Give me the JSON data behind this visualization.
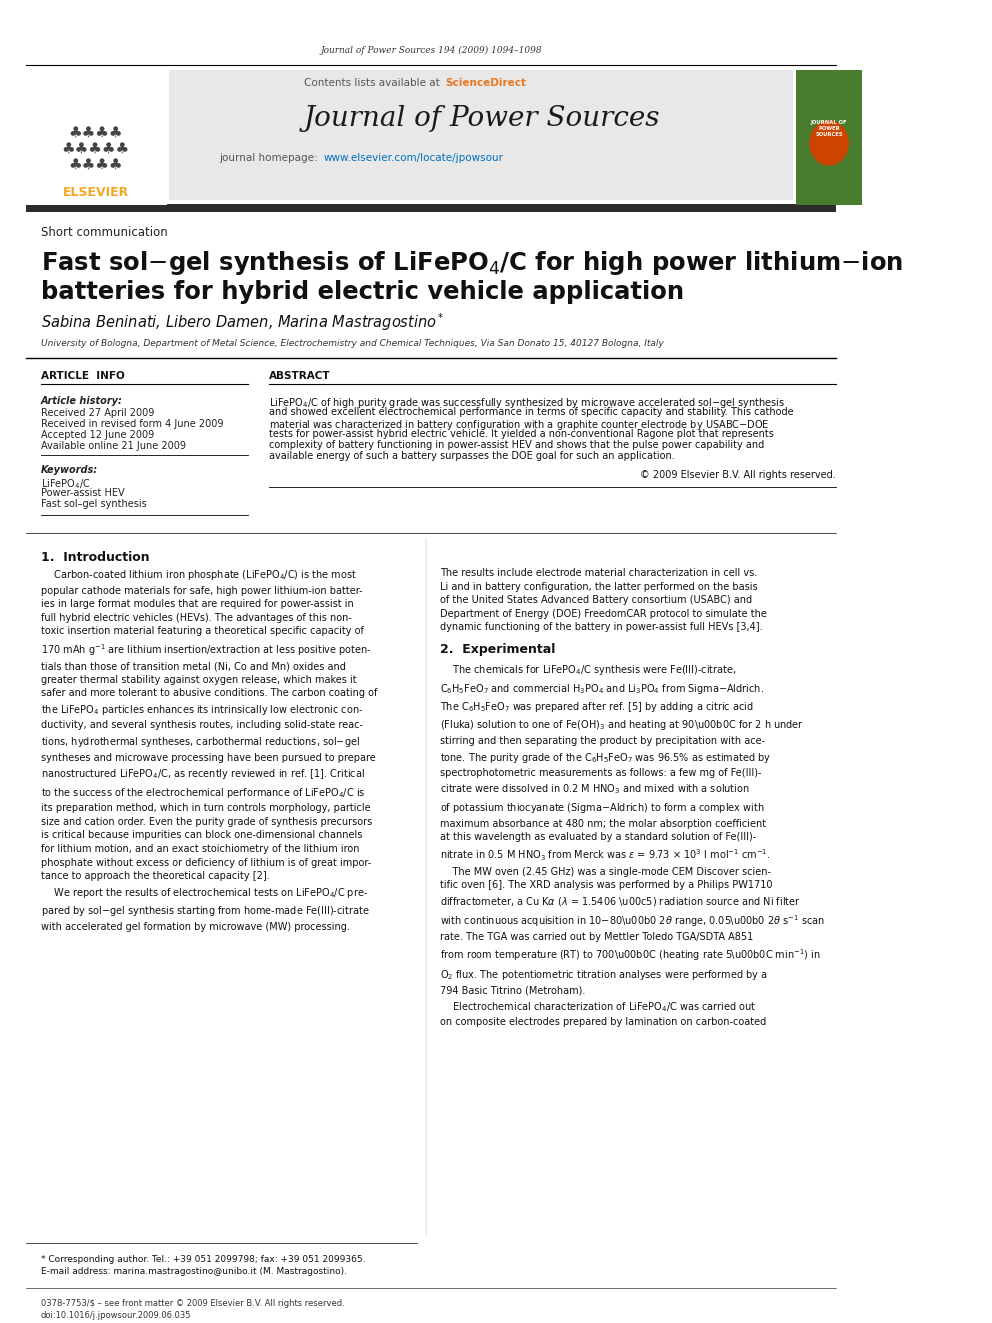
{
  "journal_ref": "Journal of Power Sources 194 (2009) 1094–1098",
  "journal_name": "Journal of Power Sources",
  "section_label": "Short communication",
  "title_line2": "batteries for hybrid electric vehicle application",
  "affiliation": "University of Bologna, Department of Metal Science, Electrochemistry and Chemical Techniques, Via San Donato 15, 40127 Bologna, Italy",
  "article_info_header": "ARTICLE  INFO",
  "abstract_header": "ABSTRACT",
  "article_history_label": "Article history:",
  "received1": "Received 27 April 2009",
  "received2": "Received in revised form 4 June 2009",
  "accepted": "Accepted 12 June 2009",
  "available": "Available online 21 June 2009",
  "kw2": "Power-assist HEV",
  "kw3": "Fast sol–gel synthesis",
  "section1_header": "1.  Introduction",
  "section2_header": "2.  Experimental",
  "footnote_star": "* Corresponding author. Tel.: +39 051 2099798; fax: +39 051 2099365.",
  "footnote_email": "E-mail address: marina.mastragostino@unibo.it (M. Mastragostino).",
  "footer_left": "0378-7753/$ – see front matter © 2009 Elsevier B.V. All rights reserved.",
  "footer_doi": "doi:10.1016/j.jpowsour.2009.06.035",
  "bg_header_color": "#e8e8e8",
  "elsevier_orange": "#f5a623",
  "sciencedirect_color": "#e87722",
  "link_color": "#0070c0",
  "dark_bar_color": "#2c2c2c"
}
